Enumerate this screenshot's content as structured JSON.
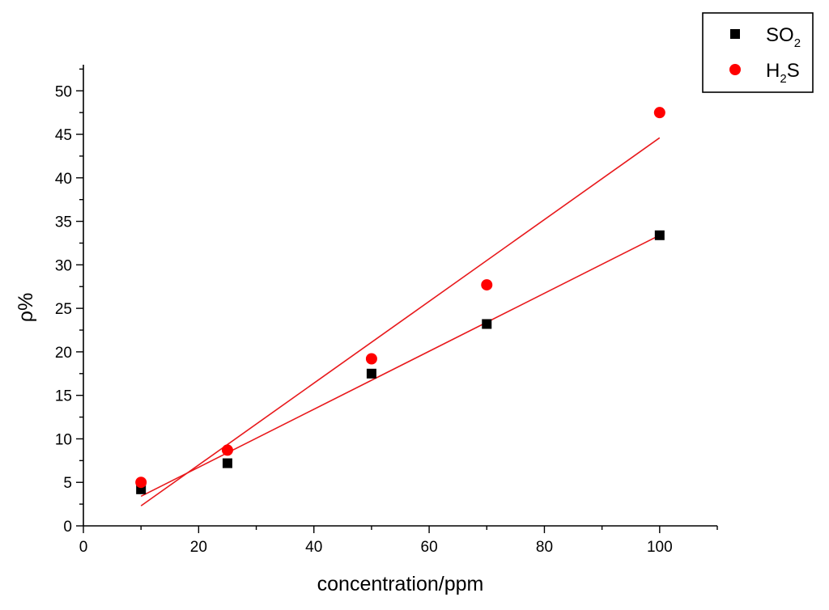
{
  "chart_data": {
    "type": "scatter",
    "xlabel": "concentration/ppm",
    "ylabel": "ρ%",
    "xlim": [
      0,
      110
    ],
    "ylim": [
      0,
      53
    ],
    "x_ticks": [
      0,
      20,
      40,
      60,
      80,
      100
    ],
    "y_ticks": [
      0,
      5,
      10,
      15,
      20,
      25,
      30,
      35,
      40,
      45,
      50
    ],
    "grid": false,
    "legend_position": "top-right",
    "fit_line_color": "#e8191c",
    "series": [
      {
        "name": "SO2",
        "legend_label": {
          "base": "SO",
          "sub": "2",
          "tail": ""
        },
        "marker": "square",
        "color": "#000000",
        "x": [
          10,
          25,
          50,
          70,
          100
        ],
        "y": [
          4.2,
          7.2,
          17.5,
          23.2,
          33.4
        ],
        "fit": {
          "x": [
            10,
            100
          ],
          "y": [
            3.4,
            33.4
          ]
        }
      },
      {
        "name": "H2S",
        "legend_label": {
          "base": "H",
          "sub": "2",
          "tail": "S"
        },
        "marker": "circle",
        "color": "#ff0000",
        "x": [
          10,
          25,
          50,
          70,
          100
        ],
        "y": [
          5.0,
          8.7,
          19.2,
          27.7,
          47.5
        ],
        "fit": {
          "x": [
            10,
            100
          ],
          "y": [
            2.3,
            44.6
          ]
        }
      }
    ]
  }
}
